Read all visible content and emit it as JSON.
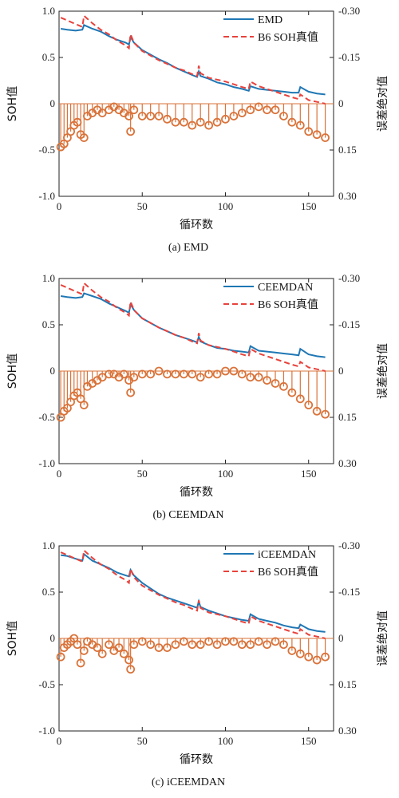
{
  "chart_data": [
    {
      "type": "line",
      "caption": "(a) EMD",
      "xlabel": "循环数",
      "ylabel": "SOH值",
      "ylabel_right": "误差绝对值",
      "xlim": [
        0,
        165
      ],
      "ylim": [
        -1.0,
        1.0
      ],
      "ylim_right": [
        0.3,
        -0.3
      ],
      "xticks": [
        "0",
        "50",
        "100",
        "150"
      ],
      "yticks": [
        "-1.0",
        "-0.5",
        "0",
        "0.5",
        "1.0"
      ],
      "yticks_right": [
        "0.30",
        "0.15",
        "0",
        "-0.15",
        "-0.30"
      ],
      "legend_position": "top-right",
      "series": [
        {
          "name": "EMD",
          "color": "#1f77b4",
          "style": "solid",
          "x": [
            1,
            5,
            10,
            14,
            15,
            20,
            25,
            30,
            35,
            40,
            42,
            43,
            45,
            50,
            55,
            60,
            65,
            70,
            75,
            80,
            83,
            84,
            85,
            90,
            95,
            100,
            105,
            110,
            114,
            115,
            120,
            125,
            130,
            135,
            140,
            144,
            145,
            150,
            155,
            160
          ],
          "y": [
            0.81,
            0.8,
            0.79,
            0.8,
            0.85,
            0.81,
            0.78,
            0.73,
            0.69,
            0.66,
            0.64,
            0.72,
            0.66,
            0.58,
            0.53,
            0.48,
            0.44,
            0.39,
            0.35,
            0.31,
            0.29,
            0.35,
            0.3,
            0.27,
            0.23,
            0.21,
            0.18,
            0.16,
            0.14,
            0.19,
            0.16,
            0.15,
            0.14,
            0.13,
            0.12,
            0.12,
            0.18,
            0.13,
            0.11,
            0.1
          ]
        },
        {
          "name": "B6 SOH真值",
          "color": "#e8423c",
          "style": "dashed",
          "x": [
            1,
            5,
            10,
            14,
            15,
            20,
            25,
            30,
            35,
            40,
            42,
            43,
            45,
            50,
            55,
            60,
            65,
            70,
            75,
            80,
            83,
            84,
            85,
            90,
            95,
            100,
            105,
            110,
            114,
            115,
            120,
            125,
            130,
            135,
            140,
            144,
            145,
            150,
            155,
            160
          ],
          "y": [
            0.93,
            0.9,
            0.86,
            0.83,
            0.95,
            0.87,
            0.8,
            0.75,
            0.68,
            0.63,
            0.6,
            0.75,
            0.66,
            0.57,
            0.52,
            0.47,
            0.43,
            0.39,
            0.36,
            0.32,
            0.3,
            0.41,
            0.33,
            0.28,
            0.26,
            0.24,
            0.21,
            0.18,
            0.16,
            0.24,
            0.19,
            0.16,
            0.13,
            0.1,
            0.07,
            0.05,
            0.1,
            0.04,
            0.02,
            0.0
          ]
        },
        {
          "name": "误差绝对值",
          "color": "#d9733a",
          "style": "stem",
          "x": [
            1,
            3,
            5,
            7,
            9,
            11,
            13,
            15,
            17,
            20,
            23,
            26,
            30,
            33,
            36,
            39,
            42,
            43,
            45,
            50,
            55,
            60,
            65,
            70,
            75,
            80,
            85,
            90,
            95,
            100,
            105,
            110,
            115,
            120,
            125,
            130,
            135,
            140,
            145,
            150,
            155,
            160
          ],
          "y": [
            0.14,
            0.13,
            0.11,
            0.09,
            0.07,
            0.06,
            0.1,
            0.11,
            0.04,
            0.03,
            0.02,
            0.03,
            0.02,
            0.01,
            0.02,
            0.03,
            0.04,
            0.09,
            0.02,
            0.04,
            0.04,
            0.04,
            0.05,
            0.06,
            0.06,
            0.07,
            0.06,
            0.07,
            0.06,
            0.05,
            0.04,
            0.03,
            0.02,
            0.01,
            0.02,
            0.02,
            0.04,
            0.06,
            0.07,
            0.09,
            0.1,
            0.11
          ]
        }
      ]
    },
    {
      "type": "line",
      "caption": "(b) CEEMDAN",
      "xlabel": "循环数",
      "ylabel": "SOH值",
      "ylabel_right": "误差绝对值",
      "xlim": [
        0,
        165
      ],
      "ylim": [
        -1.0,
        1.0
      ],
      "ylim_right": [
        0.3,
        -0.3
      ],
      "xticks": [
        "0",
        "50",
        "100",
        "150"
      ],
      "yticks": [
        "-1.0",
        "-0.5",
        "0",
        "0.5",
        "1.0"
      ],
      "yticks_right": [
        "0.30",
        "0.15",
        "0",
        "-0.15",
        "-0.30"
      ],
      "legend_position": "top-right",
      "series": [
        {
          "name": "CEEMDAN",
          "color": "#1f77b4",
          "style": "solid",
          "x": [
            1,
            5,
            10,
            14,
            15,
            20,
            25,
            30,
            35,
            40,
            42,
            43,
            45,
            50,
            55,
            60,
            65,
            70,
            75,
            80,
            83,
            84,
            85,
            90,
            95,
            100,
            105,
            110,
            114,
            115,
            120,
            125,
            130,
            135,
            140,
            144,
            145,
            150,
            155,
            160
          ],
          "y": [
            0.81,
            0.8,
            0.79,
            0.8,
            0.84,
            0.81,
            0.78,
            0.73,
            0.69,
            0.65,
            0.63,
            0.72,
            0.66,
            0.57,
            0.52,
            0.47,
            0.43,
            0.39,
            0.36,
            0.33,
            0.31,
            0.37,
            0.32,
            0.28,
            0.25,
            0.24,
            0.22,
            0.21,
            0.2,
            0.27,
            0.22,
            0.21,
            0.2,
            0.19,
            0.18,
            0.17,
            0.24,
            0.18,
            0.16,
            0.15
          ]
        },
        {
          "name": "B6 SOH真值",
          "color": "#e8423c",
          "style": "dashed",
          "x": [
            1,
            5,
            10,
            14,
            15,
            20,
            25,
            30,
            35,
            40,
            42,
            43,
            45,
            50,
            55,
            60,
            65,
            70,
            75,
            80,
            83,
            84,
            85,
            90,
            95,
            100,
            105,
            110,
            114,
            115,
            120,
            125,
            130,
            135,
            140,
            144,
            145,
            150,
            155,
            160
          ],
          "y": [
            0.93,
            0.9,
            0.86,
            0.83,
            0.95,
            0.87,
            0.8,
            0.75,
            0.68,
            0.63,
            0.6,
            0.75,
            0.66,
            0.57,
            0.52,
            0.47,
            0.43,
            0.39,
            0.36,
            0.32,
            0.3,
            0.41,
            0.33,
            0.28,
            0.26,
            0.24,
            0.21,
            0.18,
            0.16,
            0.24,
            0.19,
            0.16,
            0.13,
            0.1,
            0.07,
            0.05,
            0.1,
            0.04,
            0.02,
            0.0
          ]
        },
        {
          "name": "误差绝对值",
          "color": "#d9733a",
          "style": "stem",
          "x": [
            1,
            3,
            5,
            7,
            9,
            11,
            13,
            15,
            17,
            20,
            23,
            26,
            30,
            33,
            36,
            39,
            42,
            43,
            45,
            50,
            55,
            60,
            65,
            70,
            75,
            80,
            85,
            90,
            95,
            100,
            105,
            110,
            115,
            120,
            125,
            130,
            135,
            140,
            145,
            150,
            155,
            160
          ],
          "y": [
            0.15,
            0.13,
            0.12,
            0.1,
            0.08,
            0.07,
            0.09,
            0.11,
            0.05,
            0.04,
            0.03,
            0.02,
            0.01,
            0.01,
            0.02,
            0.01,
            0.03,
            0.07,
            0.02,
            0.01,
            0.01,
            0.0,
            0.01,
            0.01,
            0.01,
            0.01,
            0.02,
            0.01,
            0.01,
            0.0,
            0.0,
            0.01,
            0.02,
            0.02,
            0.03,
            0.04,
            0.05,
            0.07,
            0.09,
            0.11,
            0.13,
            0.14
          ]
        }
      ]
    },
    {
      "type": "line",
      "caption": "(c) iCEEMDAN",
      "xlabel": "循环数",
      "ylabel": "SOH值",
      "ylabel_right": "误差绝对值",
      "xlim": [
        0,
        165
      ],
      "ylim": [
        -1.0,
        1.0
      ],
      "ylim_right": [
        0.3,
        -0.3
      ],
      "xticks": [
        "0",
        "50",
        "100",
        "150"
      ],
      "yticks": [
        "-1.0",
        "-0.5",
        "0",
        "0.5",
        "1.0"
      ],
      "yticks_right": [
        "0.30",
        "0.15",
        "0",
        "-0.15",
        "-0.30"
      ],
      "legend_position": "top-right",
      "series": [
        {
          "name": "iCEEMDAN",
          "color": "#1f77b4",
          "style": "solid",
          "x": [
            1,
            5,
            10,
            14,
            15,
            20,
            25,
            30,
            35,
            40,
            42,
            43,
            45,
            50,
            55,
            60,
            65,
            70,
            75,
            80,
            83,
            84,
            85,
            90,
            95,
            100,
            105,
            110,
            114,
            115,
            120,
            125,
            130,
            135,
            140,
            144,
            145,
            150,
            155,
            160
          ],
          "y": [
            0.9,
            0.89,
            0.86,
            0.84,
            0.91,
            0.84,
            0.8,
            0.76,
            0.71,
            0.68,
            0.67,
            0.74,
            0.68,
            0.6,
            0.54,
            0.48,
            0.44,
            0.41,
            0.38,
            0.35,
            0.33,
            0.4,
            0.34,
            0.3,
            0.27,
            0.24,
            0.22,
            0.2,
            0.19,
            0.26,
            0.21,
            0.19,
            0.17,
            0.14,
            0.12,
            0.11,
            0.15,
            0.1,
            0.08,
            0.07
          ]
        },
        {
          "name": "B6 SOH真值",
          "color": "#e8423c",
          "style": "dashed",
          "x": [
            1,
            5,
            10,
            14,
            15,
            20,
            25,
            30,
            35,
            40,
            42,
            43,
            45,
            50,
            55,
            60,
            65,
            70,
            75,
            80,
            83,
            84,
            85,
            90,
            95,
            100,
            105,
            110,
            114,
            115,
            120,
            125,
            130,
            135,
            140,
            144,
            145,
            150,
            155,
            160
          ],
          "y": [
            0.93,
            0.9,
            0.86,
            0.83,
            0.95,
            0.87,
            0.8,
            0.75,
            0.68,
            0.63,
            0.6,
            0.75,
            0.66,
            0.57,
            0.52,
            0.47,
            0.43,
            0.39,
            0.36,
            0.32,
            0.3,
            0.41,
            0.33,
            0.28,
            0.26,
            0.24,
            0.21,
            0.18,
            0.16,
            0.24,
            0.19,
            0.16,
            0.13,
            0.1,
            0.07,
            0.05,
            0.1,
            0.04,
            0.02,
            0.0
          ]
        },
        {
          "name": "误差绝对值",
          "color": "#d9733a",
          "style": "stem",
          "x": [
            1,
            3,
            5,
            7,
            9,
            11,
            13,
            15,
            17,
            20,
            23,
            26,
            30,
            33,
            36,
            39,
            42,
            43,
            45,
            50,
            55,
            60,
            65,
            70,
            75,
            80,
            85,
            90,
            95,
            100,
            105,
            110,
            115,
            120,
            125,
            130,
            135,
            140,
            145,
            150,
            155,
            160
          ],
          "y": [
            0.06,
            0.03,
            0.02,
            0.01,
            0.0,
            0.02,
            0.08,
            0.04,
            0.01,
            0.02,
            0.03,
            0.05,
            0.02,
            0.04,
            0.03,
            0.05,
            0.07,
            0.1,
            0.02,
            0.01,
            0.02,
            0.03,
            0.03,
            0.02,
            0.01,
            0.02,
            0.02,
            0.01,
            0.02,
            0.01,
            0.01,
            0.02,
            0.02,
            0.01,
            0.02,
            0.01,
            0.02,
            0.04,
            0.05,
            0.06,
            0.07,
            0.06
          ]
        }
      ]
    }
  ]
}
